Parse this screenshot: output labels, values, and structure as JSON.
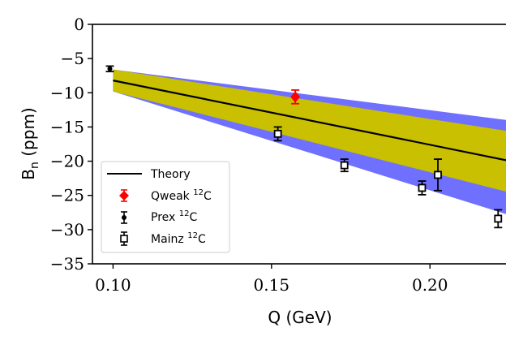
{
  "chart_data": {
    "type": "scatter",
    "title": "",
    "xlabel": "Q (GeV)",
    "ylabel_main": "B",
    "ylabel_sub": "n",
    "ylabel_unit": "(ppm)",
    "xlim": [
      0.0935,
      0.2245
    ],
    "ylim": [
      -35,
      0
    ],
    "xticks": [
      0.1,
      0.15,
      0.2
    ],
    "xtick_labels": [
      "0.10",
      "0.15",
      "0.20"
    ],
    "yticks": [
      0,
      -5,
      -10,
      -15,
      -20,
      -25,
      -30,
      -35
    ],
    "ytick_labels": [
      "0",
      "−5",
      "−10",
      "−15",
      "−20",
      "−25",
      "−30",
      "−35"
    ],
    "grid": false,
    "legend_position": "lower-left",
    "theory": {
      "name": "Theory",
      "color": "#000000",
      "x": [
        0.1,
        0.2245
      ],
      "y": [
        -8.2,
        -19.9
      ]
    },
    "bands": [
      {
        "name": "outer-band",
        "color": "#7070ff",
        "x": [
          0.1,
          0.2245
        ],
        "lower": [
          -9.8,
          -27.8
        ],
        "upper": [
          -6.6,
          -14.0
        ]
      },
      {
        "name": "inner-band",
        "color": "#c8c000",
        "x": [
          0.1,
          0.2245
        ],
        "lower": [
          -9.8,
          -24.5
        ],
        "upper": [
          -6.6,
          -15.6
        ]
      }
    ],
    "series": [
      {
        "name": "Qweak",
        "label_sup": "12",
        "label_tail": "C",
        "marker": "diamond",
        "color": "#ff0000",
        "points": [
          {
            "x": 0.1575,
            "y": -10.6,
            "err": 1.0
          }
        ]
      },
      {
        "name": "Prex",
        "label_sup": "12",
        "label_tail": "C",
        "marker": "dot",
        "color": "#000000",
        "points": [
          {
            "x": 0.099,
            "y": -6.5,
            "err": 0.4
          }
        ]
      },
      {
        "name": "Mainz",
        "label_sup": "12",
        "label_tail": "C",
        "marker": "square",
        "color": "#000000",
        "points": [
          {
            "x": 0.152,
            "y": -16.0,
            "err": 1.0
          },
          {
            "x": 0.173,
            "y": -20.6,
            "err": 0.9
          },
          {
            "x": 0.1975,
            "y": -23.9,
            "err": 1.0
          },
          {
            "x": 0.2025,
            "y": -22.0,
            "err": 2.3
          },
          {
            "x": 0.2215,
            "y": -28.4,
            "err": 1.3
          }
        ]
      }
    ]
  }
}
